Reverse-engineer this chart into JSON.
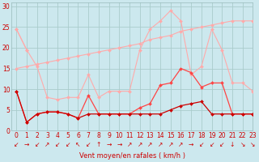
{
  "title": "",
  "xlabel": "Vent moyen/en rafales ( km/h )",
  "bg_color": "#cce8ee",
  "grid_color": "#aacccc",
  "xlim": [
    -0.5,
    23
  ],
  "ylim": [
    0,
    31
  ],
  "yticks": [
    0,
    5,
    10,
    15,
    20,
    25,
    30
  ],
  "xticks": [
    0,
    1,
    2,
    3,
    4,
    5,
    6,
    7,
    8,
    9,
    10,
    11,
    12,
    13,
    14,
    15,
    16,
    17,
    18,
    19,
    20,
    21,
    22,
    23
  ],
  "series": [
    {
      "color": "#ffaaaa",
      "lw": 0.8,
      "marker": "D",
      "ms": 2.0,
      "data_x": [
        0,
        1,
        2,
        3,
        4,
        5,
        6,
        7,
        8,
        9,
        10,
        11,
        12,
        13,
        14,
        15,
        16,
        17,
        18,
        19,
        20,
        21,
        22,
        23
      ],
      "data_y": [
        24.5,
        19.5,
        null,
        null,
        null,
        null,
        null,
        null,
        null,
        null,
        null,
        null,
        null,
        null,
        null,
        null,
        null,
        null,
        null,
        null,
        null,
        null,
        null,
        null
      ]
    },
    {
      "color": "#ffaaaa",
      "lw": 0.8,
      "marker": "D",
      "ms": 2.0,
      "data_x": [
        0,
        1,
        2,
        3,
        4,
        5,
        6,
        7,
        8,
        9,
        10,
        11,
        12,
        13,
        14,
        15,
        16,
        17,
        18,
        19,
        20,
        21,
        22,
        23
      ],
      "data_y": [
        15.0,
        15.5,
        16.0,
        16.5,
        17.0,
        17.5,
        18.0,
        18.5,
        19.0,
        19.5,
        20.0,
        20.5,
        21.0,
        22.0,
        22.5,
        23.0,
        24.0,
        24.5,
        25.0,
        25.5,
        26.0,
        26.5,
        26.5,
        26.5
      ]
    },
    {
      "color": "#ffaaaa",
      "lw": 0.8,
      "marker": "D",
      "ms": 2.0,
      "data_x": [
        0,
        1,
        2,
        3,
        4,
        5,
        6,
        7,
        8,
        9,
        10,
        11,
        12,
        13,
        14,
        15,
        16,
        17,
        18,
        19,
        20,
        21,
        22,
        23
      ],
      "data_y": [
        24.5,
        19.5,
        15.5,
        8.0,
        7.5,
        8.0,
        8.0,
        13.5,
        8.0,
        9.5,
        9.5,
        9.5,
        19.5,
        24.5,
        26.5,
        29.0,
        26.5,
        13.5,
        15.5,
        24.5,
        19.5,
        11.5,
        11.5,
        9.5
      ]
    },
    {
      "color": "#ff4444",
      "lw": 0.9,
      "marker": "D",
      "ms": 2.0,
      "data_x": [
        0,
        1,
        2,
        3,
        4,
        5,
        6,
        7,
        8,
        9,
        10,
        11,
        12,
        13,
        14,
        15,
        16,
        17,
        18,
        19,
        20,
        21,
        22,
        23
      ],
      "data_y": [
        9.5,
        2.0,
        4.0,
        4.5,
        4.5,
        4.0,
        3.0,
        8.5,
        4.0,
        4.0,
        4.0,
        4.0,
        5.5,
        6.5,
        11.0,
        11.5,
        15.0,
        14.0,
        10.5,
        11.5,
        11.5,
        4.0,
        4.0,
        4.0
      ]
    },
    {
      "color": "#cc0000",
      "lw": 0.9,
      "marker": "D",
      "ms": 2.0,
      "data_x": [
        0,
        1,
        2,
        3,
        4,
        5,
        6,
        7,
        8,
        9,
        10,
        11,
        12,
        13,
        14,
        15,
        16,
        17,
        18,
        19,
        20,
        21,
        22,
        23
      ],
      "data_y": [
        9.5,
        2.0,
        4.0,
        4.5,
        4.5,
        4.0,
        3.0,
        4.0,
        4.0,
        4.0,
        4.0,
        4.0,
        4.0,
        4.0,
        4.0,
        5.0,
        6.0,
        6.5,
        7.0,
        4.0,
        4.0,
        4.0,
        4.0,
        4.0
      ]
    }
  ],
  "wind_arrows": [
    "↙",
    "→",
    "↙",
    "↗",
    "↙",
    "↙",
    "↖",
    "↙",
    "↑",
    "→",
    "→",
    "↗",
    "↗",
    "↗",
    "↗",
    "↗",
    "↗",
    "→",
    "↙",
    "↙",
    "↙",
    "↓",
    "↘",
    "↘"
  ],
  "arrow_fontsize": 5.5,
  "xlabel_fontsize": 6.0,
  "tick_fontsize": 5.5
}
